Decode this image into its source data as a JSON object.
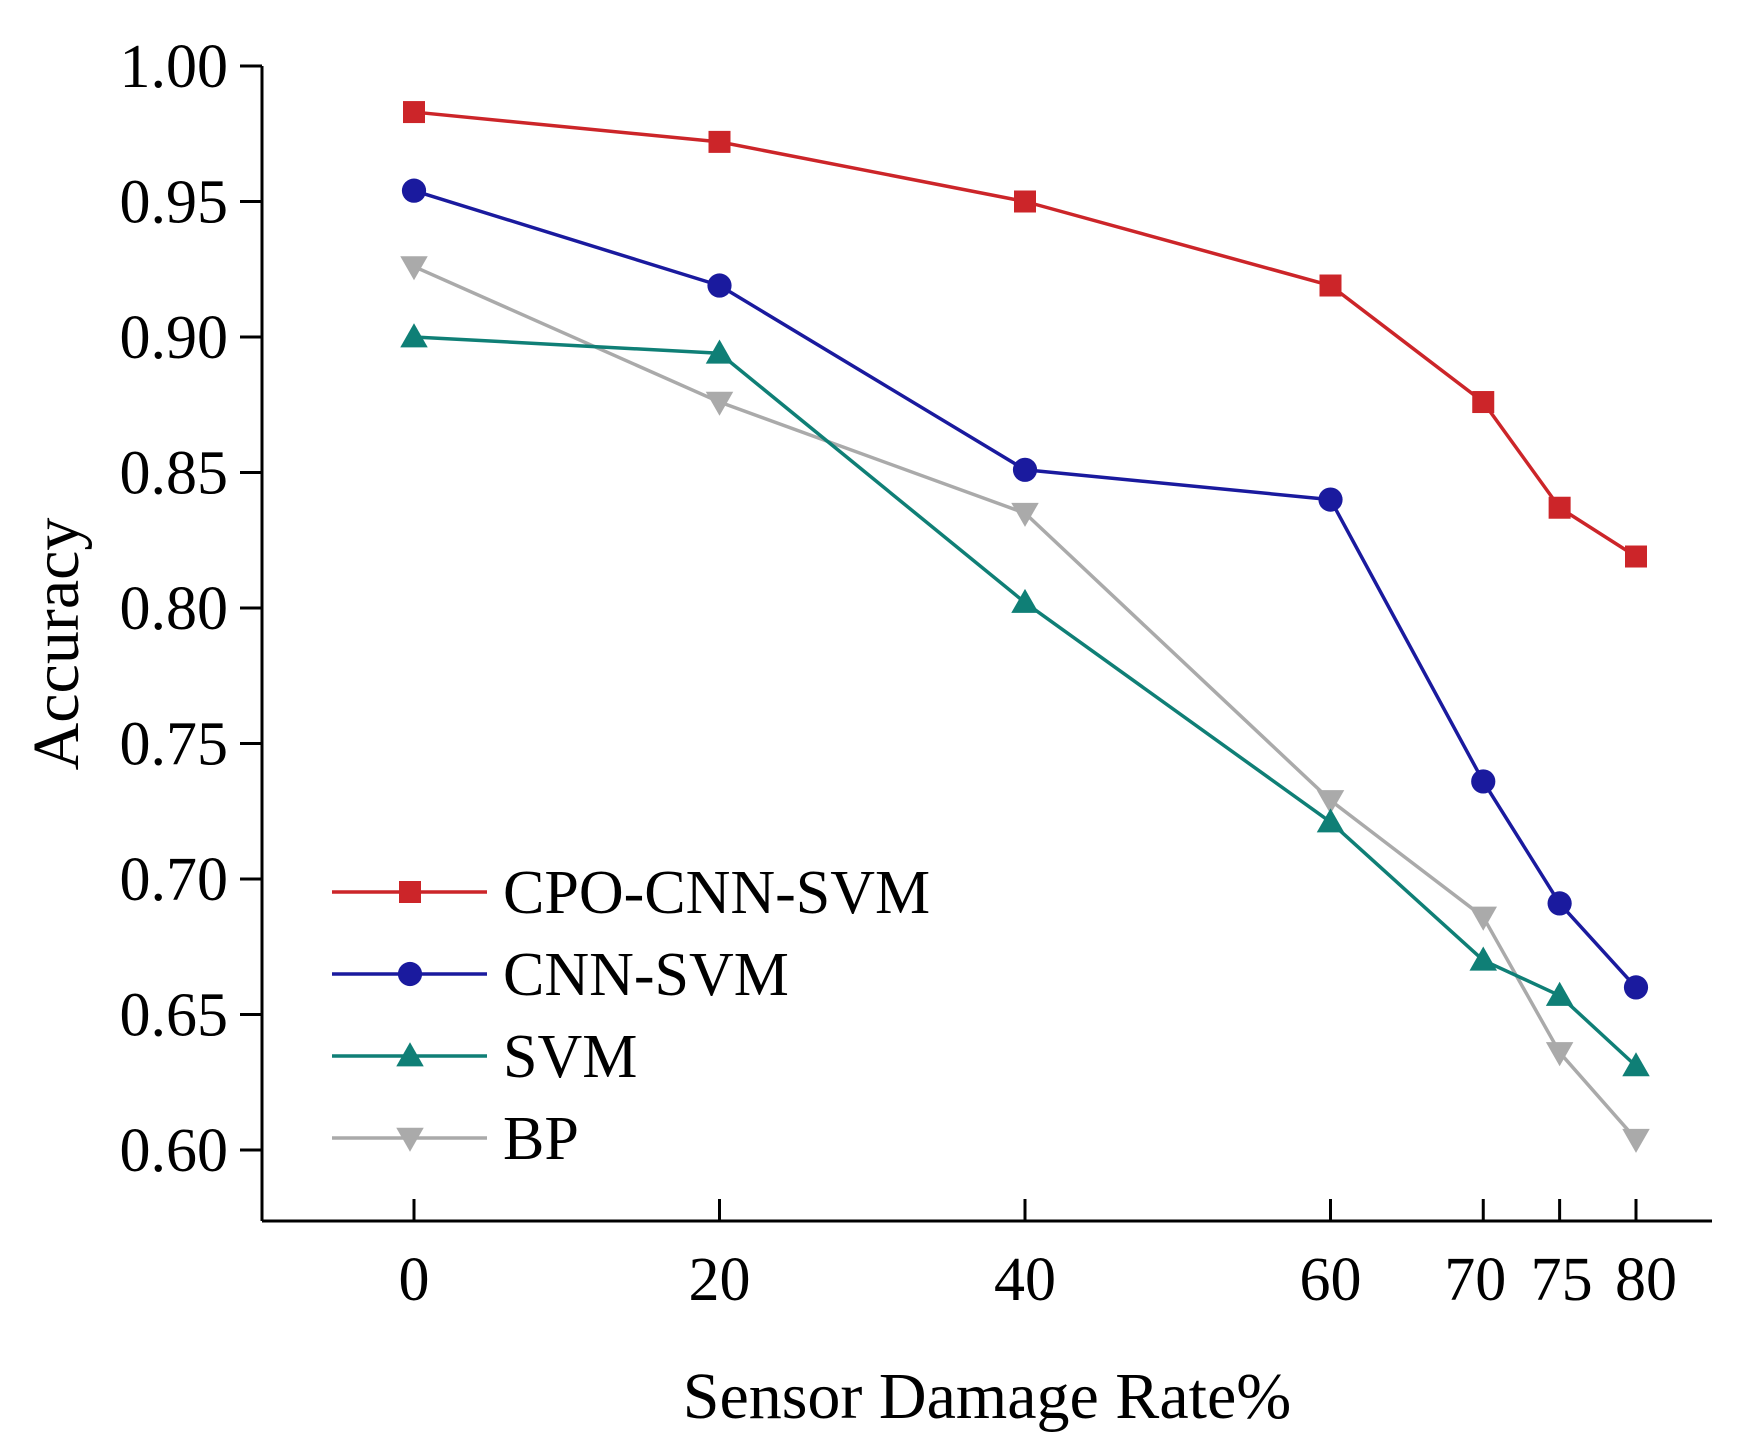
{
  "chart_data": {
    "type": "line",
    "title": "",
    "xlabel": "Sensor Damage Rate%",
    "ylabel": "Accuracy",
    "x": [
      0,
      20,
      40,
      60,
      70,
      75,
      80
    ],
    "x_tick_labels": [
      "0",
      "20",
      "40",
      "60",
      "70",
      "75",
      "80"
    ],
    "xlim": [
      -10,
      85
    ],
    "ylim": [
      0.585,
      1.0
    ],
    "y_ticks": [
      0.6,
      0.65,
      0.7,
      0.75,
      0.8,
      0.85,
      0.9,
      0.95,
      1.0
    ],
    "y_tick_labels": [
      "0.60",
      "0.65",
      "0.70",
      "0.75",
      "0.80",
      "0.85",
      "0.90",
      "0.95",
      "1.00"
    ],
    "grid": false,
    "legend_position": "bottom-left",
    "series": [
      {
        "name": "CPO-CNN-SVM",
        "color": "#cc2529",
        "marker": "square",
        "values": [
          0.983,
          0.972,
          0.95,
          0.919,
          0.876,
          0.837,
          0.819
        ]
      },
      {
        "name": "CNN-SVM",
        "color": "#1a1a9e",
        "marker": "circle",
        "values": [
          0.954,
          0.919,
          0.851,
          0.84,
          0.736,
          0.691,
          0.66
        ]
      },
      {
        "name": "SVM",
        "color": "#0f7f76",
        "marker": "triangle-up",
        "values": [
          0.9,
          0.894,
          0.802,
          0.721,
          0.67,
          0.657,
          0.631
        ]
      },
      {
        "name": "BP",
        "color": "#aaaaaa",
        "marker": "triangle-down",
        "values": [
          0.926,
          0.876,
          0.835,
          0.729,
          0.686,
          0.636,
          0.604
        ]
      }
    ]
  }
}
